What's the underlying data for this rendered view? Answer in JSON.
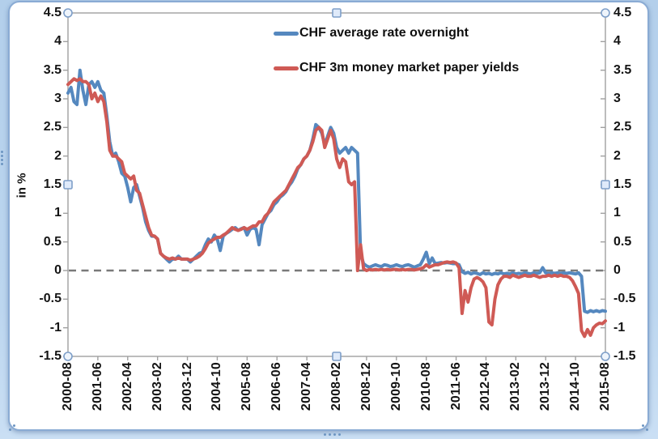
{
  "window": {
    "background": "#bcd6ef",
    "frame_fill": "#ffffff",
    "frame_border": "#8aabd4",
    "handle_fill": "#eef4fb",
    "handle_stroke": "#7e9fc9",
    "grip_color": "#6d95c2"
  },
  "chart_data": {
    "type": "line",
    "title": "",
    "ylabel": "in %",
    "ylim": [
      -1.5,
      4.5
    ],
    "ytick_step": 0.5,
    "grid": false,
    "legend_position": "top-center-inside",
    "axis_color": "#a0a0a0",
    "text_color": "#141414",
    "y_ticks": [
      "4.5",
      "4",
      "3.5",
      "3",
      "2.5",
      "2",
      "1.5",
      "1",
      "0.5",
      "0",
      "-0.5",
      "-1",
      "-1.5"
    ],
    "y_tick_values": [
      4.5,
      4,
      3.5,
      3,
      2.5,
      2,
      1.5,
      1,
      0.5,
      0,
      -0.5,
      -1,
      -1.5
    ],
    "x_tick_labels": [
      "2000-08",
      "2001-06",
      "2002-04",
      "2003-02",
      "2003-12",
      "2004-10",
      "2005-08",
      "2006-06",
      "2007-04",
      "2008-02",
      "2008-12",
      "2009-10",
      "2010-08",
      "2011-06",
      "2012-04",
      "2013-02",
      "2013-12",
      "2014-10",
      "2015-08"
    ],
    "x_start": "2000-08",
    "x_end": "2015-08",
    "x_months_total": 180,
    "x_months_per_tick": 10,
    "zero_line": {
      "style": "dashed",
      "color": "#7a7a7a"
    },
    "legend": [
      {
        "label": "CHF average rate overnight",
        "color": "#5588bf"
      },
      {
        "label": "CHF 3m money market paper yields",
        "color": "#cf5a55"
      }
    ],
    "series": [
      {
        "id": "overnight",
        "name": "CHF average rate overnight",
        "color": "#5588bf",
        "values": [
          3.1,
          3.2,
          2.95,
          2.9,
          3.5,
          3.15,
          2.9,
          3.25,
          3.3,
          3.2,
          3.3,
          3.15,
          3.1,
          2.7,
          2.25,
          2.0,
          2.05,
          1.9,
          1.7,
          1.65,
          1.45,
          1.2,
          1.45,
          1.5,
          1.3,
          1.1,
          0.85,
          0.7,
          0.6,
          0.6,
          0.55,
          0.3,
          0.25,
          0.2,
          0.15,
          0.2,
          0.2,
          0.25,
          0.2,
          0.2,
          0.2,
          0.15,
          0.2,
          0.25,
          0.3,
          0.32,
          0.45,
          0.55,
          0.5,
          0.62,
          0.55,
          0.35,
          0.6,
          0.65,
          0.68,
          0.72,
          0.75,
          0.7,
          0.73,
          0.75,
          0.62,
          0.72,
          0.75,
          0.72,
          0.45,
          0.8,
          0.9,
          1.0,
          1.05,
          1.15,
          1.2,
          1.28,
          1.32,
          1.38,
          1.48,
          1.55,
          1.65,
          1.78,
          1.85,
          1.95,
          2.0,
          2.1,
          2.3,
          2.55,
          2.5,
          2.4,
          2.2,
          2.35,
          2.5,
          2.4,
          2.15,
          2.05,
          2.1,
          2.15,
          2.05,
          2.15,
          2.1,
          2.05,
          0.3,
          0.12,
          0.08,
          0.06,
          0.08,
          0.1,
          0.08,
          0.07,
          0.1,
          0.09,
          0.07,
          0.08,
          0.1,
          0.08,
          0.07,
          0.09,
          0.1,
          0.08,
          0.06,
          0.08,
          0.1,
          0.2,
          0.32,
          0.12,
          0.22,
          0.12,
          0.13,
          0.14,
          0.13,
          0.14,
          0.13,
          0.12,
          0.12,
          0.1,
          -0.02,
          -0.05,
          -0.03,
          -0.06,
          -0.04,
          -0.05,
          -0.07,
          -0.04,
          -0.06,
          -0.05,
          -0.07,
          -0.05,
          -0.06,
          -0.04,
          -0.06,
          -0.05,
          -0.06,
          -0.04,
          -0.06,
          -0.05,
          -0.06,
          -0.04,
          -0.05,
          -0.06,
          -0.04,
          -0.05,
          -0.04,
          0.05,
          -0.04,
          -0.05,
          -0.04,
          -0.05,
          -0.04,
          -0.05,
          -0.04,
          -0.05,
          -0.04,
          -0.05,
          -0.06,
          -0.04,
          -0.1,
          -0.71,
          -0.73,
          -0.7,
          -0.72,
          -0.7,
          -0.72,
          -0.7,
          -0.71
        ]
      },
      {
        "id": "paper-3m",
        "name": "CHF 3m money market paper yields",
        "color": "#cf5a55",
        "values": [
          3.25,
          3.3,
          3.35,
          3.32,
          3.35,
          3.3,
          3.3,
          3.25,
          3.0,
          3.1,
          2.95,
          3.05,
          2.95,
          2.6,
          2.1,
          2.0,
          2.0,
          1.95,
          1.9,
          1.7,
          1.65,
          1.6,
          1.65,
          1.4,
          1.35,
          1.15,
          0.95,
          0.75,
          0.62,
          0.6,
          0.55,
          0.3,
          0.25,
          0.22,
          0.2,
          0.22,
          0.2,
          0.22,
          0.2,
          0.2,
          0.2,
          0.18,
          0.2,
          0.22,
          0.25,
          0.3,
          0.38,
          0.48,
          0.52,
          0.55,
          0.58,
          0.58,
          0.62,
          0.65,
          0.7,
          0.75,
          0.72,
          0.7,
          0.72,
          0.75,
          0.72,
          0.75,
          0.78,
          0.78,
          0.85,
          0.85,
          0.95,
          1.0,
          1.1,
          1.2,
          1.25,
          1.3,
          1.35,
          1.4,
          1.5,
          1.6,
          1.7,
          1.8,
          1.85,
          1.95,
          2.0,
          2.1,
          2.25,
          2.45,
          2.5,
          2.45,
          2.15,
          2.3,
          2.45,
          2.3,
          1.95,
          1.8,
          1.95,
          1.9,
          1.55,
          1.5,
          1.55,
          0.0,
          0.45,
          0.03,
          0.0,
          0.02,
          0.01,
          0.02,
          0.01,
          0.02,
          0.01,
          0.02,
          0.01,
          0.02,
          0.02,
          0.01,
          0.02,
          0.01,
          0.02,
          0.02,
          0.01,
          0.02,
          0.03,
          0.05,
          0.1,
          0.06,
          0.08,
          0.1,
          0.1,
          0.12,
          0.14,
          0.15,
          0.14,
          0.15,
          0.13,
          0.05,
          -0.75,
          -0.35,
          -0.55,
          -0.3,
          -0.15,
          -0.12,
          -0.15,
          -0.2,
          -0.3,
          -0.9,
          -0.95,
          -0.5,
          -0.25,
          -0.15,
          -0.1,
          -0.1,
          -0.12,
          -0.08,
          -0.1,
          -0.12,
          -0.1,
          -0.08,
          -0.1,
          -0.1,
          -0.08,
          -0.1,
          -0.12,
          -0.1,
          -0.1,
          -0.08,
          -0.1,
          -0.08,
          -0.1,
          -0.08,
          -0.1,
          -0.1,
          -0.12,
          -0.18,
          -0.28,
          -0.4,
          -1.05,
          -1.15,
          -1.03,
          -1.13,
          -1.0,
          -0.95,
          -0.92,
          -0.93,
          -0.88
        ]
      }
    ]
  }
}
